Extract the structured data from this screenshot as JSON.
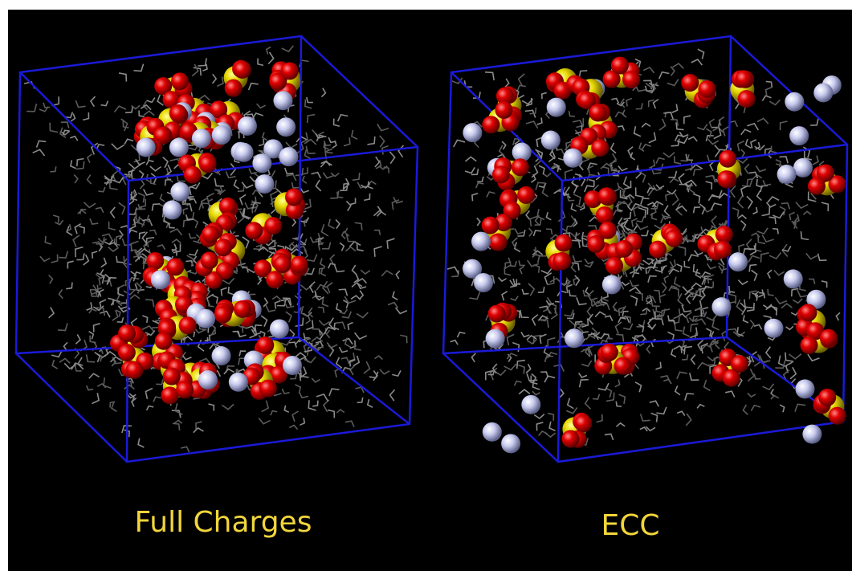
{
  "panels": [
    {
      "label": "Full Charges"
    },
    {
      "label": "ECC"
    }
  ]
}
